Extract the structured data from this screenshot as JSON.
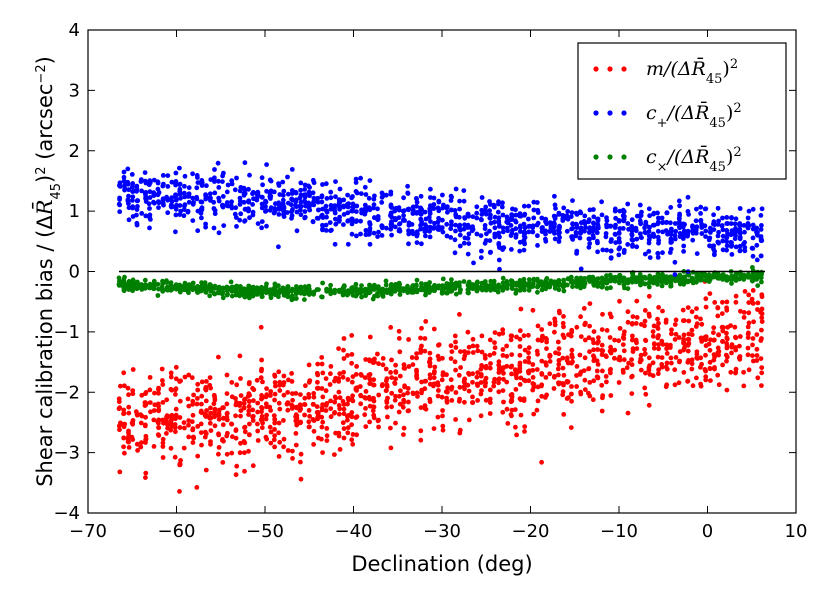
{
  "chart_data": {
    "type": "scatter",
    "title": "",
    "xlabel": "Declination (deg)",
    "ylabel": "Shear calibration bias / (ΔR̄₄₅)² (arcsec⁻²)",
    "xlim": [
      -70,
      10
    ],
    "ylim": [
      -4,
      4
    ],
    "xticks": [
      -70,
      -60,
      -50,
      -40,
      -30,
      -20,
      -10,
      0,
      10
    ],
    "xtick_labels": [
      "−70",
      "−60",
      "−50",
      "−40",
      "−30",
      "−20",
      "−10",
      "0",
      "10"
    ],
    "yticks": [
      -4,
      -3,
      -2,
      -1,
      0,
      1,
      2,
      3,
      4
    ],
    "ytick_labels": [
      "−4",
      "−3",
      "−2",
      "−1",
      "0",
      "1",
      "2",
      "3",
      "4"
    ],
    "grid": false,
    "reference_line_y": 0,
    "legend_position": "top-right",
    "series": [
      {
        "name": "m/(ΔR̄₄₅)²",
        "label_main": "m/(ΔR̄",
        "label_sub": "45",
        "label_tail": ")",
        "label_sup": "2",
        "color": "#ff0000",
        "x_range": [
          -66.5,
          6.5
        ],
        "trend": [
          [
            -66,
            -2.45
          ],
          [
            -45,
            -2.3
          ],
          [
            -30,
            -1.75
          ],
          [
            -20,
            -1.6
          ],
          [
            -10,
            -1.35
          ],
          [
            0,
            -1.15
          ],
          [
            6,
            -1.05
          ]
        ],
        "spread": 0.55,
        "n_points": 1400
      },
      {
        "name": "c₊/(ΔR̄₄₅)²",
        "label_main": "c",
        "label_main_sub": "+",
        "label_rest": "/(ΔR̄",
        "label_sub": "45",
        "label_tail": ")",
        "label_sup": "2",
        "color": "#0000ff",
        "x_range": [
          -66.5,
          6.5
        ],
        "trend": [
          [
            -66,
            1.3
          ],
          [
            -50,
            1.15
          ],
          [
            -40,
            1.0
          ],
          [
            -30,
            0.82
          ],
          [
            -20,
            0.75
          ],
          [
            -10,
            0.7
          ],
          [
            0,
            0.65
          ],
          [
            6,
            0.6
          ]
        ],
        "spread": 0.28,
        "n_points": 1300
      },
      {
        "name": "c×/(ΔR̄₄₅)²",
        "label_main": "c",
        "label_main_sub": "×",
        "label_rest": "/(ΔR̄",
        "label_sub": "45",
        "label_tail": ")",
        "label_sup": "2",
        "color": "#008000",
        "x_range": [
          -66.5,
          6.5
        ],
        "trend": [
          [
            -66,
            -0.22
          ],
          [
            -50,
            -0.33
          ],
          [
            -40,
            -0.33
          ],
          [
            -30,
            -0.27
          ],
          [
            -20,
            -0.22
          ],
          [
            -10,
            -0.15
          ],
          [
            0,
            -0.1
          ],
          [
            6,
            -0.08
          ]
        ],
        "spread": 0.07,
        "n_points": 1100
      }
    ]
  }
}
